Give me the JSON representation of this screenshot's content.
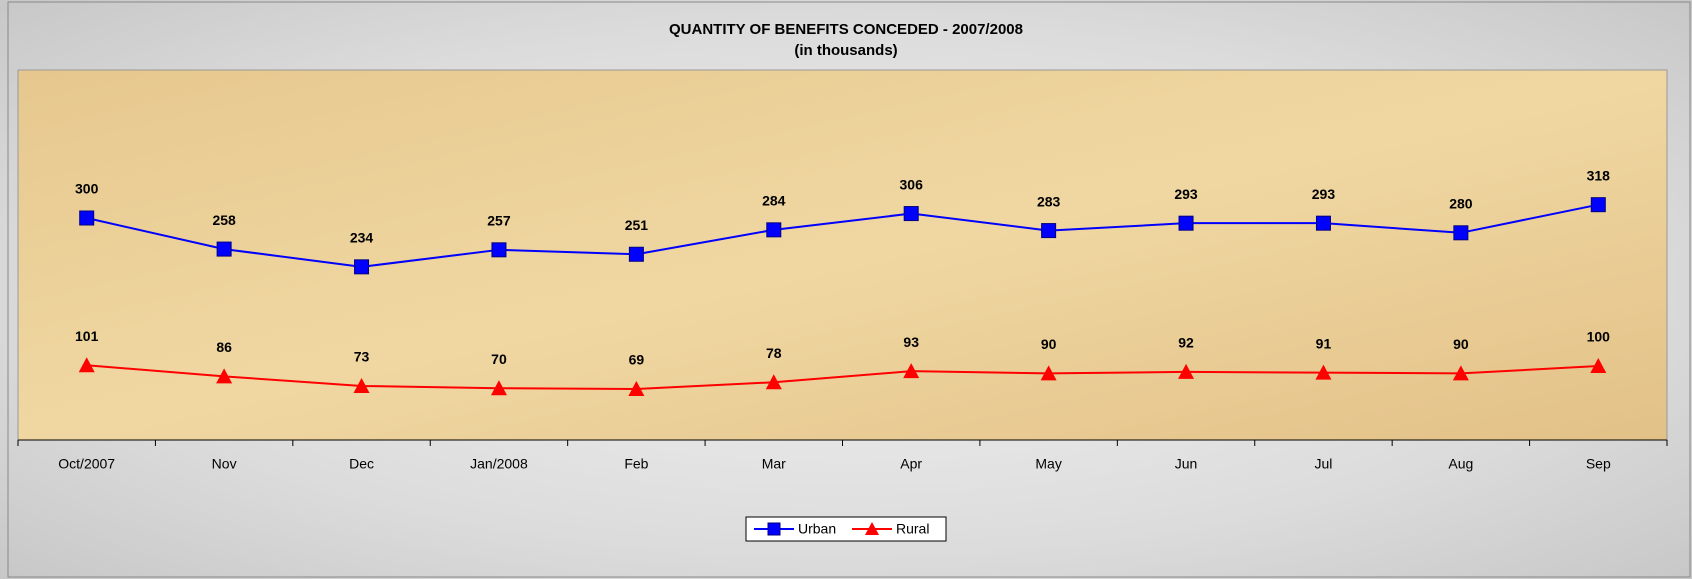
{
  "chart_data": {
    "type": "line",
    "title": "QUANTITY OF BENEFITS CONCEDED - 2007/2008",
    "subtitle": "(in thousands)",
    "categories": [
      "Oct/2007",
      "Nov",
      "Dec",
      "Jan/2008",
      "Feb",
      "Mar",
      "Apr",
      "May",
      "Jun",
      "Jul",
      "Aug",
      "Sep"
    ],
    "series": [
      {
        "name": "Urban",
        "color": "#0000ff",
        "marker": "square",
        "values": [
          300,
          258,
          234,
          257,
          251,
          284,
          306,
          283,
          293,
          293,
          280,
          318
        ]
      },
      {
        "name": "Rural",
        "color": "#ff0000",
        "marker": "triangle",
        "values": [
          101,
          86,
          73,
          70,
          69,
          78,
          93,
          90,
          92,
          91,
          90,
          100
        ]
      }
    ],
    "ylim": [
      0,
      500
    ],
    "legend": "bottom"
  }
}
